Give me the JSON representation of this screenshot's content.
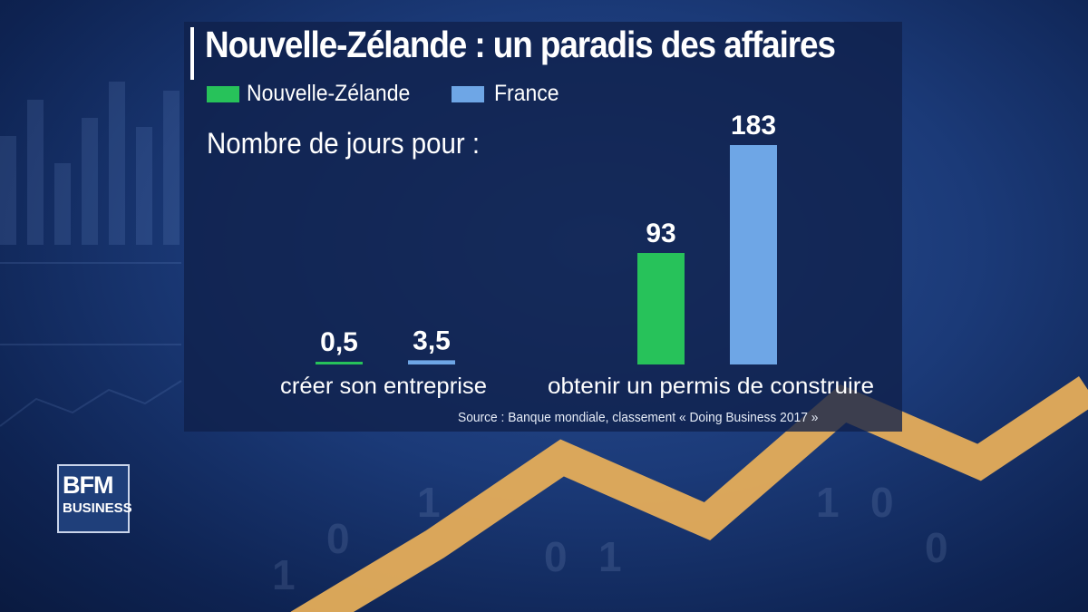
{
  "title": "Nouvelle-Zélande : un paradis des affaires",
  "subtitle": "Nombre de jours pour :",
  "source": "Source : Banque mondiale, classement « Doing Business 2017 »",
  "logo": {
    "line1": "BFM",
    "line2": "BUSINESS"
  },
  "colors": {
    "nz": "#27c25a",
    "france": "#6ea6e6",
    "trend": "#e5ad5a"
  },
  "chart_data": {
    "type": "bar",
    "title": "Nouvelle-Zélande : un paradis des affaires",
    "ylabel": "Nombre de jours pour :",
    "categories": [
      "créer son entreprise",
      "obtenir un permis de construire"
    ],
    "series": [
      {
        "name": "Nouvelle-Zélande",
        "values": [
          0.5,
          93
        ],
        "labels": [
          "0,5",
          "93"
        ]
      },
      {
        "name": "France",
        "values": [
          3.5,
          183
        ],
        "labels": [
          "3,5",
          "183"
        ]
      }
    ]
  }
}
